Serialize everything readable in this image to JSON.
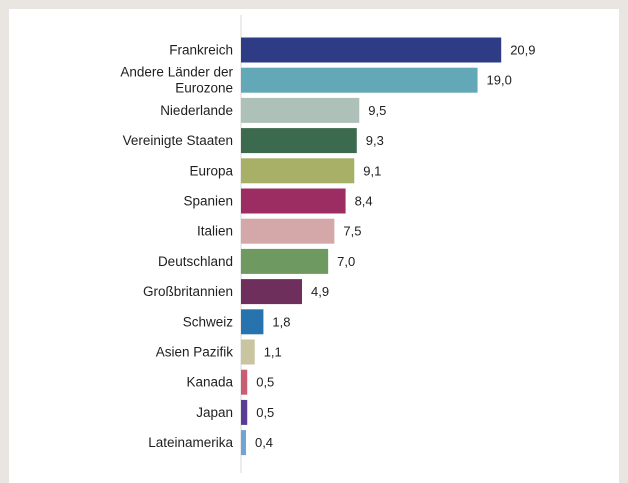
{
  "chart_data": {
    "type": "bar",
    "orientation": "horizontal",
    "title": "",
    "xlabel": "",
    "ylabel": "",
    "xlim": [
      0,
      21
    ],
    "grid": false,
    "legend": "none",
    "decimal_separator": ",",
    "categories": [
      "Frankreich",
      "Andere Länder der Eurozone",
      "Niederlande",
      "Vereinigte Staaten",
      "Europa",
      "Spanien",
      "Italien",
      "Deutschland",
      "Großbritannien",
      "Schweiz",
      "Asien Pazifik",
      "Kanada",
      "Japan",
      "Lateinamerika"
    ],
    "label_lines": [
      [
        "Frankreich"
      ],
      [
        "Andere Länder der",
        "Eurozone"
      ],
      [
        "Niederlande"
      ],
      [
        "Vereinigte Staaten"
      ],
      [
        "Europa"
      ],
      [
        "Spanien"
      ],
      [
        "Italien"
      ],
      [
        "Deutschland"
      ],
      [
        "Großbritannien"
      ],
      [
        "Schweiz"
      ],
      [
        "Asien Pazifik"
      ],
      [
        "Kanada"
      ],
      [
        "Japan"
      ],
      [
        "Lateinamerika"
      ]
    ],
    "values": [
      20.9,
      19.0,
      9.5,
      9.3,
      9.1,
      8.4,
      7.5,
      7.0,
      4.9,
      1.8,
      1.1,
      0.5,
      0.5,
      0.4
    ],
    "value_labels": [
      "20,9",
      "19,0",
      "9,5",
      "9,3",
      "9,1",
      "8,4",
      "7,5",
      "7,0",
      "4,9",
      "1,8",
      "1,1",
      "0,5",
      "0,5",
      "0,4"
    ],
    "colors": [
      "#2e3b85",
      "#62a8b6",
      "#adc1b9",
      "#3c6a4e",
      "#a8b067",
      "#9b2d63",
      "#d4a7a9",
      "#6e9a61",
      "#6f2f5c",
      "#2773ad",
      "#c9c5a0",
      "#c85d74",
      "#5a3d96",
      "#6fa4d5"
    ]
  }
}
